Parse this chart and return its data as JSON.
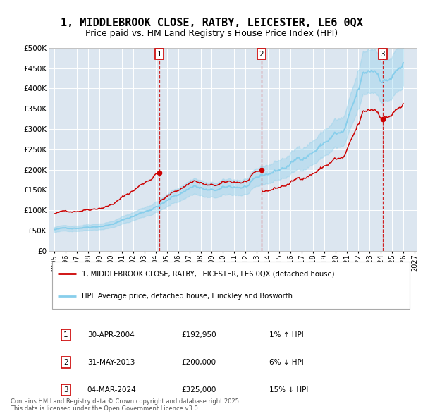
{
  "title": "1, MIDDLEBROOK CLOSE, RATBY, LEICESTER, LE6 0QX",
  "subtitle": "Price paid vs. HM Land Registry's House Price Index (HPI)",
  "title_fontsize": 11,
  "subtitle_fontsize": 9,
  "background_color": "#ffffff",
  "plot_background_color": "#dce6f0",
  "ylim": [
    0,
    500000
  ],
  "yticks": [
    0,
    50000,
    100000,
    150000,
    200000,
    250000,
    300000,
    350000,
    400000,
    450000,
    500000
  ],
  "ytick_labels": [
    "£0",
    "£50K",
    "£100K",
    "£150K",
    "£200K",
    "£250K",
    "£300K",
    "£350K",
    "£400K",
    "£450K",
    "£500K"
  ],
  "xlim_start": 1994.5,
  "xlim_end": 2027.2,
  "xticks": [
    1995,
    1996,
    1997,
    1998,
    1999,
    2000,
    2001,
    2002,
    2003,
    2004,
    2005,
    2006,
    2007,
    2008,
    2009,
    2010,
    2011,
    2012,
    2013,
    2014,
    2015,
    2016,
    2017,
    2018,
    2019,
    2020,
    2021,
    2022,
    2023,
    2024,
    2025,
    2026,
    2027
  ],
  "sale_dates": [
    2004.33,
    2013.42,
    2024.17
  ],
  "sale_prices": [
    192950,
    200000,
    325000
  ],
  "sale_labels": [
    "1",
    "2",
    "3"
  ],
  "hpi_color": "#87CEEB",
  "price_color": "#cc0000",
  "vline_color": "#cc0000",
  "legend_label_price": "1, MIDDLEBROOK CLOSE, RATBY, LEICESTER, LE6 0QX (detached house)",
  "legend_label_hpi": "HPI: Average price, detached house, Hinckley and Bosworth",
  "table_rows": [
    {
      "num": "1",
      "date": "30-APR-2004",
      "price": "£192,950",
      "hpi": "1% ↑ HPI"
    },
    {
      "num": "2",
      "date": "31-MAY-2013",
      "price": "£200,000",
      "hpi": "6% ↓ HPI"
    },
    {
      "num": "3",
      "date": "04-MAR-2024",
      "price": "£325,000",
      "hpi": "15% ↓ HPI"
    }
  ],
  "footnote": "Contains HM Land Registry data © Crown copyright and database right 2025.\nThis data is licensed under the Open Government Licence v3.0.",
  "grid_color": "#ffffff"
}
